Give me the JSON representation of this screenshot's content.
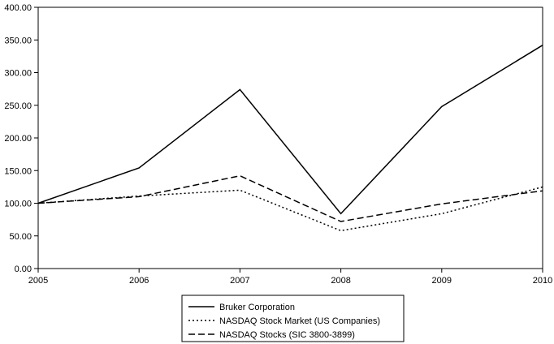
{
  "chart_data": {
    "type": "line",
    "title": "",
    "xlabel": "",
    "ylabel": "",
    "categories": [
      "2005",
      "2006",
      "2007",
      "2008",
      "2009",
      "2010"
    ],
    "y_tick_labels": [
      "0.00",
      "50.00",
      "100.00",
      "150.00",
      "200.00",
      "250.00",
      "300.00",
      "350.00",
      "400.00"
    ],
    "ylim": [
      0,
      400
    ],
    "grid": false,
    "legend_position": "bottom-center",
    "series": [
      {
        "name": "Bruker Corporation",
        "values": [
          100,
          154,
          274,
          84,
          248,
          342
        ],
        "color": "#000000",
        "style": "solid"
      },
      {
        "name": "NASDAQ Stock Market (US Companies)",
        "values": [
          100,
          111,
          120,
          58,
          84,
          125
        ],
        "color": "#000000",
        "style": "dotted"
      },
      {
        "name": "NASDAQ Stocks (SIC 3800-3899)",
        "values": [
          100,
          110,
          142,
          72,
          99,
          119
        ],
        "color": "#000000",
        "style": "dashed"
      }
    ]
  }
}
